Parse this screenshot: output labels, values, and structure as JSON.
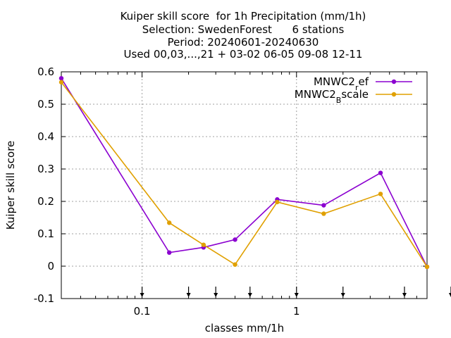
{
  "chart_data": {
    "type": "line",
    "title_lines": [
      "Kuiper skill score  for 1h Precipitation (mm/1h)",
      "Selection: SwedenForest      6 stations",
      "Period: 20240601-20240630",
      "Used 00,03,...,21 + 03-02 06-05 09-08 12-11"
    ],
    "xlabel": "classes mm/1h",
    "ylabel": "Kuiper skill score",
    "xscale": "log",
    "xlim": [
      0.03,
      7
    ],
    "ylim": [
      -0.1,
      0.6
    ],
    "yticks": [
      -0.1,
      0,
      0.1,
      0.2,
      0.3,
      0.4,
      0.5,
      0.6
    ],
    "ytick_labels": [
      "-0.1",
      "0",
      "0.1",
      "0.2",
      "0.3",
      "0.4",
      "0.5",
      "0.6"
    ],
    "xticks": [
      0.1,
      1
    ],
    "xtick_labels": [
      "0.1",
      "1"
    ],
    "grid": true,
    "legend_position": "top-right",
    "threshold_arrows": [
      0.1,
      0.2,
      0.3,
      0.5,
      1,
      2,
      5,
      10
    ],
    "series": [
      {
        "name_main": "MNWC2",
        "name_sub": "r",
        "name_tail": "ef",
        "color": "#8b00d0",
        "x": [
          0.03,
          0.15,
          0.25,
          0.4,
          0.75,
          1.5,
          3.5,
          7
        ],
        "y": [
          0.58,
          0.042,
          0.058,
          0.082,
          0.206,
          0.188,
          0.288,
          -0.002
        ]
      },
      {
        "name_main": "MNWC2",
        "name_sub": "B",
        "name_tail": "scale",
        "color": "#e0a000",
        "x": [
          0.03,
          0.15,
          0.25,
          0.4,
          0.75,
          1.5,
          3.5,
          7
        ],
        "y": [
          0.568,
          0.134,
          0.066,
          0.005,
          0.198,
          0.162,
          0.223,
          -0.002
        ]
      }
    ]
  }
}
